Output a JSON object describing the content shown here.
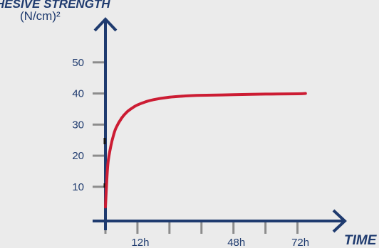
{
  "chart_data": {
    "type": "line",
    "title": "HESIVE STRENGTH",
    "ylabel": "(N/cm)²",
    "xlabel": "TIME",
    "y_ticks": [
      10,
      20,
      30,
      40,
      50
    ],
    "y_tick_labels": [
      "10",
      "20",
      "30",
      "40",
      "50"
    ],
    "x_ticks": [
      0,
      12,
      24,
      36,
      48,
      60,
      72
    ],
    "x_tick_labels": [
      "",
      "12h",
      "",
      "",
      "48h",
      "",
      "72h"
    ],
    "ylim": [
      -1,
      60
    ],
    "xlim": [
      0,
      86
    ],
    "grid": false,
    "series": [
      {
        "x": [
          0,
          0.5,
          1,
          2,
          3,
          4,
          6,
          8,
          10,
          12,
          15,
          18,
          24,
          30,
          36,
          48,
          60,
          72,
          75
        ],
        "values": [
          3.5,
          12,
          18,
          23,
          26.5,
          29,
          32,
          34,
          35.3,
          36.3,
          37.3,
          38,
          38.8,
          39.2,
          39.4,
          39.6,
          39.8,
          39.9,
          40
        ]
      }
    ],
    "colors": {
      "axis": "#1f3b6f",
      "line": "#cc1c33",
      "tick": "#8c8c8c"
    }
  }
}
